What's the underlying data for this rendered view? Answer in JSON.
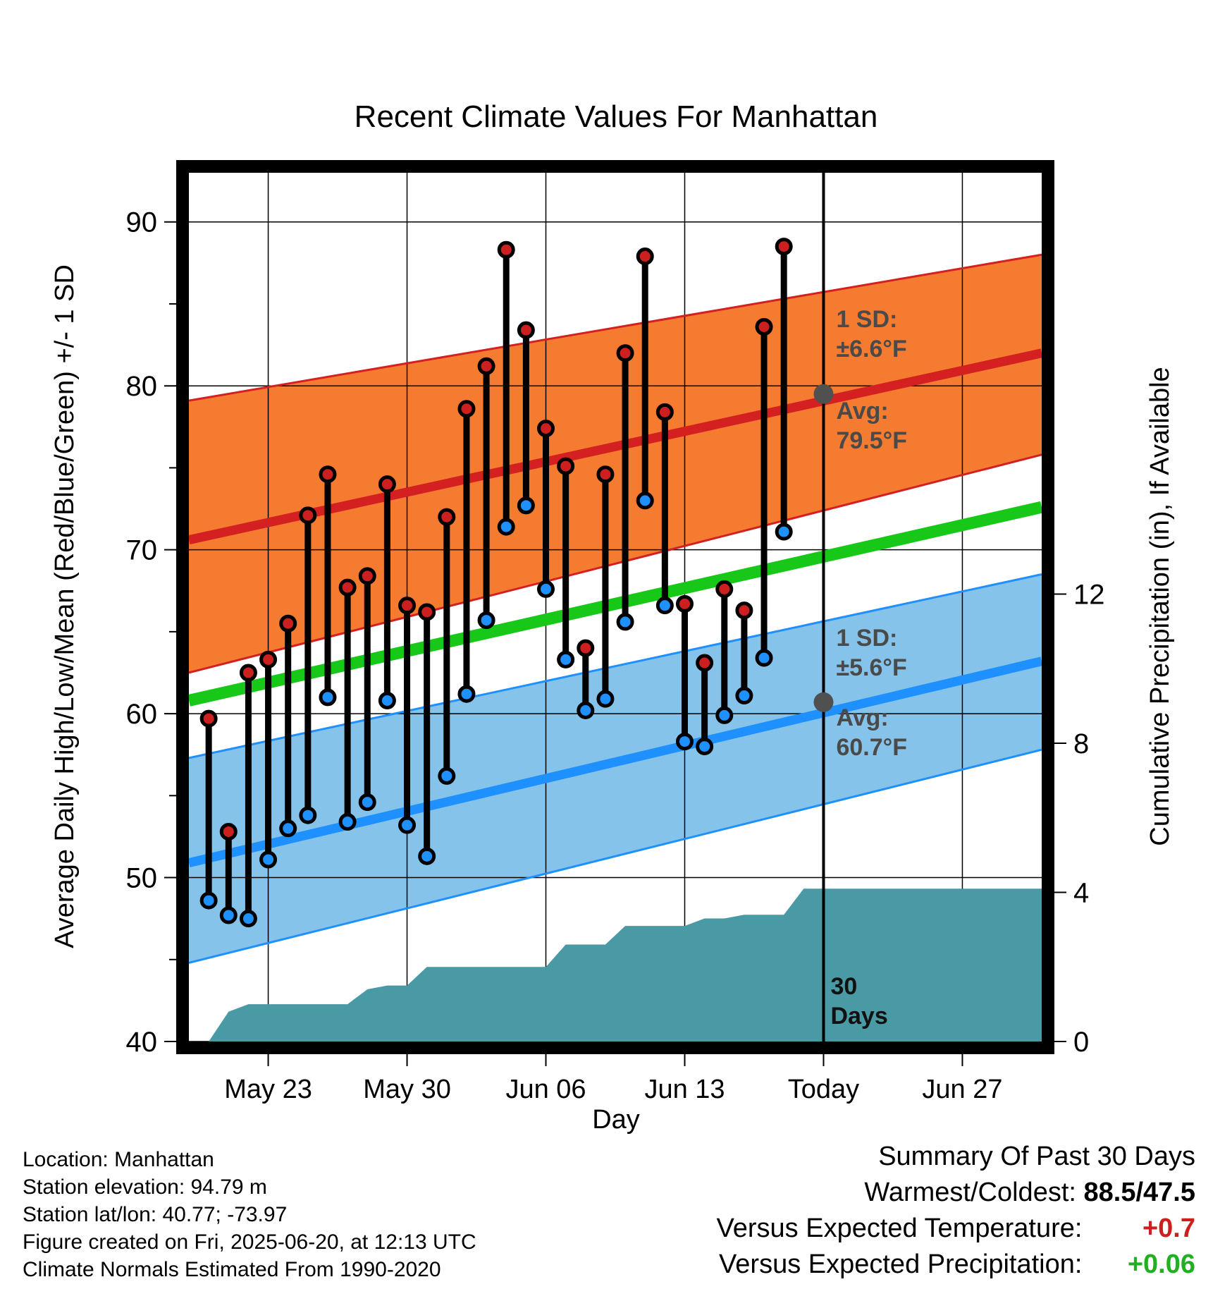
{
  "chart_data": {
    "type": "line",
    "title": "Recent Climate Values For Manhattan",
    "xlabel": "Day",
    "ylabel": "Average Daily High/Low/Mean (Red/Blue/Green) +/- 1 SD",
    "y2label": "Cumulative Precipitation (in), If Available",
    "ylim": [
      40,
      93
    ],
    "y2lim": [
      0,
      23.3
    ],
    "yticks": [
      40,
      50,
      60,
      70,
      80,
      90
    ],
    "y2ticks": [
      0,
      4,
      8,
      12
    ],
    "xlim": [
      "2025-05-19",
      "2025-07-01"
    ],
    "xticks": [
      {
        "date": "2025-05-23",
        "label": "May 23"
      },
      {
        "date": "2025-05-30",
        "label": "May 30"
      },
      {
        "date": "2025-06-06",
        "label": "Jun 06"
      },
      {
        "date": "2025-06-13",
        "label": "Jun 13"
      },
      {
        "date": "2025-06-20",
        "label": "Today"
      },
      {
        "date": "2025-06-27",
        "label": "Jun 27"
      }
    ],
    "today": "2025-06-20",
    "today_label": [
      "30",
      "Days"
    ],
    "normals": {
      "high_mean": {
        "x": [
          "2025-05-19",
          "2025-07-01"
        ],
        "y": [
          70.6,
          82.0
        ]
      },
      "high_upper": {
        "x": [
          "2025-05-19",
          "2025-07-01"
        ],
        "y": [
          79.1,
          88.0
        ]
      },
      "high_lower": {
        "x": [
          "2025-05-19",
          "2025-07-01"
        ],
        "y": [
          62.5,
          75.8
        ]
      },
      "mean": {
        "x": [
          "2025-05-19",
          "2025-07-01"
        ],
        "y": [
          60.8,
          72.6
        ]
      },
      "low_mean": {
        "x": [
          "2025-05-19",
          "2025-07-01"
        ],
        "y": [
          50.9,
          63.2
        ]
      },
      "low_upper": {
        "x": [
          "2025-05-19",
          "2025-07-01"
        ],
        "y": [
          57.3,
          68.5
        ]
      },
      "low_lower": {
        "x": [
          "2025-05-19",
          "2025-07-01"
        ],
        "y": [
          44.8,
          57.8
        ]
      }
    },
    "annotations": {
      "high_sd": [
        "1 SD:",
        "±6.6°F"
      ],
      "high_avg": [
        "Avg:",
        "79.5°F"
      ],
      "low_sd": [
        "1 SD:",
        "±5.6°F"
      ],
      "low_avg": [
        "Avg:",
        "60.7°F"
      ]
    },
    "today_avg_high": 79.5,
    "today_avg_low": 60.7,
    "series": [
      {
        "key": "high",
        "color": "#cc1f1f",
        "x": [
          "2025-05-20",
          "2025-05-21",
          "2025-05-22",
          "2025-05-23",
          "2025-05-24",
          "2025-05-25",
          "2025-05-26",
          "2025-05-27",
          "2025-05-28",
          "2025-05-29",
          "2025-05-30",
          "2025-05-31",
          "2025-06-01",
          "2025-06-02",
          "2025-06-03",
          "2025-06-04",
          "2025-06-05",
          "2025-06-06",
          "2025-06-07",
          "2025-06-08",
          "2025-06-09",
          "2025-06-10",
          "2025-06-11",
          "2025-06-12",
          "2025-06-13",
          "2025-06-14",
          "2025-06-15",
          "2025-06-16",
          "2025-06-17",
          "2025-06-18",
          "2025-06-19"
        ],
        "values": [
          59.7,
          52.8,
          62.5,
          63.3,
          65.5,
          72.1,
          74.6,
          67.7,
          68.4,
          74.0,
          66.6,
          66.2,
          72.0,
          78.6,
          81.2,
          88.3,
          83.4,
          77.4,
          75.1,
          64.0,
          74.6,
          82.0,
          87.9,
          78.4,
          66.7,
          63.1,
          67.6,
          66.3,
          83.6,
          88.5,
          null
        ]
      },
      {
        "key": "low",
        "color": "#1e90ff",
        "x": [
          "2025-05-20",
          "2025-05-21",
          "2025-05-22",
          "2025-05-23",
          "2025-05-24",
          "2025-05-25",
          "2025-05-26",
          "2025-05-27",
          "2025-05-28",
          "2025-05-29",
          "2025-05-30",
          "2025-05-31",
          "2025-06-01",
          "2025-06-02",
          "2025-06-03",
          "2025-06-04",
          "2025-06-05",
          "2025-06-06",
          "2025-06-07",
          "2025-06-08",
          "2025-06-09",
          "2025-06-10",
          "2025-06-11",
          "2025-06-12",
          "2025-06-13",
          "2025-06-14",
          "2025-06-15",
          "2025-06-16",
          "2025-06-17",
          "2025-06-18",
          "2025-06-19"
        ],
        "values": [
          48.6,
          47.7,
          47.5,
          51.1,
          53.0,
          53.8,
          61.0,
          53.4,
          54.6,
          60.8,
          53.2,
          51.3,
          56.2,
          61.2,
          65.7,
          71.4,
          72.7,
          67.6,
          63.3,
          60.2,
          60.9,
          65.6,
          73.0,
          66.6,
          58.3,
          58.0,
          59.9,
          61.1,
          63.4,
          71.1,
          null
        ]
      },
      {
        "key": "precip",
        "type": "area",
        "color": "#4a9aa5",
        "x": [
          "2025-05-19",
          "2025-05-20",
          "2025-05-21",
          "2025-05-22",
          "2025-05-23",
          "2025-05-24",
          "2025-05-25",
          "2025-05-26",
          "2025-05-27",
          "2025-05-28",
          "2025-05-29",
          "2025-05-30",
          "2025-05-31",
          "2025-06-01",
          "2025-06-02",
          "2025-06-03",
          "2025-06-04",
          "2025-06-05",
          "2025-06-06",
          "2025-06-07",
          "2025-06-08",
          "2025-06-09",
          "2025-06-10",
          "2025-06-11",
          "2025-06-12",
          "2025-06-13",
          "2025-06-14",
          "2025-06-15",
          "2025-06-16",
          "2025-06-17",
          "2025-06-18",
          "2025-06-19",
          "2025-06-20",
          "2025-07-01"
        ],
        "values": [
          0,
          0,
          0.8,
          1.0,
          1.0,
          1.0,
          1.0,
          1.0,
          1.0,
          1.4,
          1.5,
          1.5,
          2.0,
          2.0,
          2.0,
          2.0,
          2.0,
          2.0,
          2.0,
          2.6,
          2.6,
          2.6,
          3.1,
          3.1,
          3.1,
          3.1,
          3.3,
          3.3,
          3.4,
          3.4,
          3.4,
          4.1,
          4.1,
          4.1
        ]
      }
    ]
  },
  "info": {
    "location": "Location: Manhattan",
    "elevation": "Station elevation: 94.79 m",
    "latlon": "Station lat/lon: 40.77; -73.97",
    "created": "Figure created on Fri, 2025-06-20, at 12:13 UTC",
    "normals": "Climate Normals Estimated From 1990-2020"
  },
  "summary": {
    "title": "Summary Of Past 30 Days",
    "warmest_label": "Warmest/Coldest:",
    "warmest_value": "88.5/47.5",
    "temp_label": "Versus Expected Temperature:",
    "temp_value": "+0.7",
    "temp_color": "#cc1f1f",
    "precip_label": "Versus Expected Precipitation:",
    "precip_value": "+0.06",
    "precip_color": "#22b022"
  }
}
